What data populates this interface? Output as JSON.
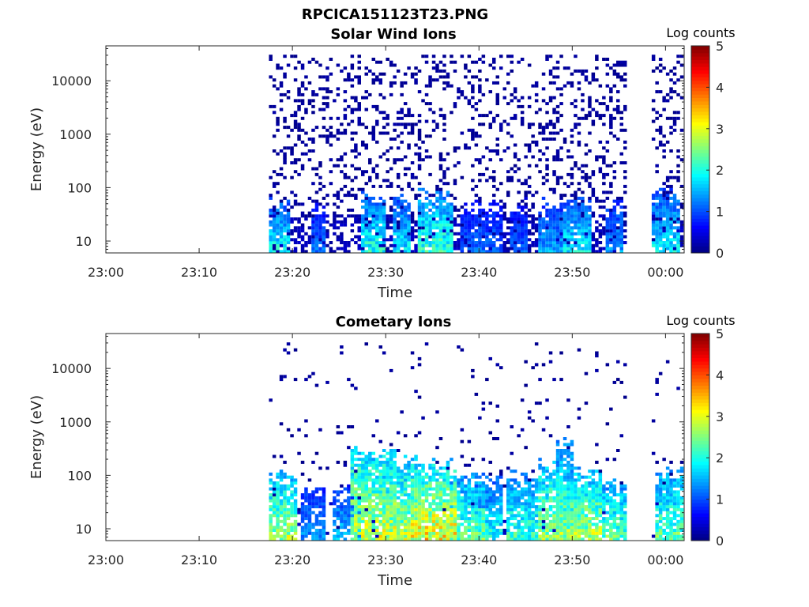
{
  "figure": {
    "title": "RPCICA151123T23.PNG"
  },
  "colorbar": {
    "label": "Log counts",
    "range": [
      0,
      5
    ],
    "ticks": [
      "0",
      "1",
      "2",
      "3",
      "4",
      "5"
    ],
    "colormap": "jet"
  },
  "chart_data": [
    {
      "type": "heatmap",
      "title": "Solar Wind Ions",
      "xlabel": "Time",
      "ylabel": "Energy (eV)",
      "x_ticks": [
        "23:00",
        "23:10",
        "23:20",
        "23:30",
        "23:40",
        "23:50",
        "00:00"
      ],
      "x_range_minutes": [
        0,
        62
      ],
      "y_ticks": [
        "10",
        "100",
        "1000",
        "10000"
      ],
      "y_scale": "log",
      "y_range": [
        6,
        45000
      ],
      "z_label": "Log counts",
      "z_range": [
        0,
        5
      ],
      "data_gaps": [
        [
          0,
          17
        ],
        [
          56,
          58.2
        ]
      ],
      "active_intervals": [
        [
          17.2,
          55.8
        ],
        [
          58.2,
          61.8
        ]
      ],
      "high_energy_sparse_level": 0.2,
      "low_energy_bursts": [
        {
          "time": 18.5,
          "duration": 1.2,
          "energy_top": 25,
          "peak_log_counts": 2.1
        },
        {
          "time": 22.5,
          "duration": 0.8,
          "energy_top": 20,
          "peak_log_counts": 1.3
        },
        {
          "time": 28.5,
          "duration": 1.5,
          "energy_top": 35,
          "peak_log_counts": 2.2
        },
        {
          "time": 31.5,
          "duration": 1.0,
          "energy_top": 30,
          "peak_log_counts": 2.0
        },
        {
          "time": 35.2,
          "duration": 1.8,
          "energy_top": 40,
          "peak_log_counts": 2.4
        },
        {
          "time": 38.5,
          "duration": 0.8,
          "energy_top": 25,
          "peak_log_counts": 1.2
        },
        {
          "time": 41.0,
          "duration": 1.5,
          "energy_top": 25,
          "peak_log_counts": 1.3
        },
        {
          "time": 44.0,
          "duration": 1.0,
          "energy_top": 25,
          "peak_log_counts": 1.2
        },
        {
          "time": 47.5,
          "duration": 1.2,
          "energy_top": 25,
          "peak_log_counts": 1.6
        },
        {
          "time": 50.5,
          "duration": 1.5,
          "energy_top": 30,
          "peak_log_counts": 2.0
        },
        {
          "time": 54.3,
          "duration": 1.0,
          "energy_top": 25,
          "peak_log_counts": 1.6
        },
        {
          "time": 60.0,
          "duration": 1.5,
          "energy_top": 40,
          "peak_log_counts": 2.0
        }
      ]
    },
    {
      "type": "heatmap",
      "title": "Cometary Ions",
      "xlabel": "Time",
      "ylabel": "Energy (eV)",
      "x_ticks": [
        "23:00",
        "23:10",
        "23:20",
        "23:30",
        "23:40",
        "23:50",
        "00:00"
      ],
      "x_range_minutes": [
        0,
        62
      ],
      "y_ticks": [
        "10",
        "100",
        "1000",
        "10000"
      ],
      "y_scale": "log",
      "y_range": [
        6,
        45000
      ],
      "z_label": "Log counts",
      "z_range": [
        0,
        5
      ],
      "data_gaps": [
        [
          0,
          17
        ],
        [
          56,
          58.2
        ]
      ],
      "active_intervals": [
        [
          17.2,
          55.8
        ],
        [
          58.2,
          61.8
        ]
      ],
      "high_energy_sparse_level": 0.03,
      "low_energy_bursts": [
        {
          "time": 18.8,
          "duration": 1.5,
          "energy_top": 50,
          "peak_log_counts": 3.0
        },
        {
          "time": 22.0,
          "duration": 1.2,
          "energy_top": 30,
          "peak_log_counts": 1.5
        },
        {
          "time": 25.5,
          "duration": 1.5,
          "energy_top": 25,
          "peak_log_counts": 1.8
        },
        {
          "time": 28.5,
          "duration": 2.5,
          "energy_top": 150,
          "peak_log_counts": 3.2
        },
        {
          "time": 31.5,
          "duration": 2.0,
          "energy_top": 100,
          "peak_log_counts": 3.0
        },
        {
          "time": 35.0,
          "duration": 2.5,
          "energy_top": 80,
          "peak_log_counts": 3.5
        },
        {
          "time": 38.5,
          "duration": 2.0,
          "energy_top": 50,
          "peak_log_counts": 2.6
        },
        {
          "time": 41.0,
          "duration": 1.5,
          "energy_top": 40,
          "peak_log_counts": 2.2
        },
        {
          "time": 44.5,
          "duration": 1.8,
          "energy_top": 50,
          "peak_log_counts": 2.4
        },
        {
          "time": 47.5,
          "duration": 1.2,
          "energy_top": 80,
          "peak_log_counts": 3.0
        },
        {
          "time": 49.0,
          "duration": 1.0,
          "energy_top": 200,
          "peak_log_counts": 2.5
        },
        {
          "time": 51.0,
          "duration": 2.0,
          "energy_top": 60,
          "peak_log_counts": 3.0
        },
        {
          "time": 54.3,
          "duration": 1.2,
          "energy_top": 40,
          "peak_log_counts": 2.6
        },
        {
          "time": 60.2,
          "duration": 1.5,
          "energy_top": 60,
          "peak_log_counts": 2.6
        }
      ]
    }
  ]
}
